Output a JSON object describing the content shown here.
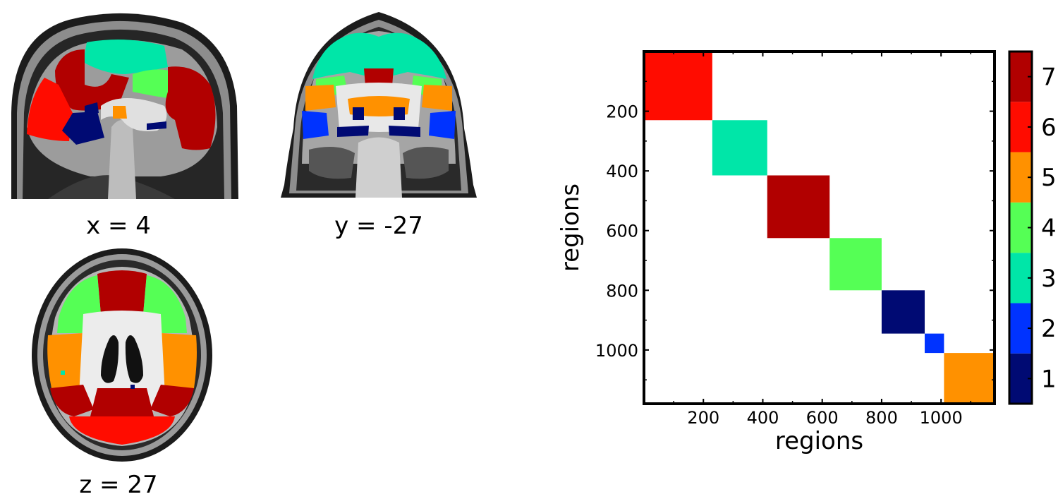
{
  "slices": [
    {
      "label": "x = 4"
    },
    {
      "label": "y = -27"
    },
    {
      "label": "z = 27"
    }
  ],
  "region_colors": {
    "1": "#000a73",
    "2": "#0033ff",
    "3": "#00e6a8",
    "4": "#55ff55",
    "5": "#ff9100",
    "6": "#ff0c00",
    "7": "#b10000"
  },
  "chart_data": {
    "type": "heatmap",
    "xlabel": "regions",
    "ylabel": "regions",
    "xlim": [
      0,
      1180
    ],
    "ylim": [
      0,
      1180
    ],
    "y_inverted": true,
    "xticks": [
      200,
      400,
      600,
      800,
      1000
    ],
    "yticks": [
      200,
      400,
      600,
      800,
      1000
    ],
    "background": "#ffffff",
    "blocks": [
      {
        "start": 0,
        "end": 230,
        "value": 6
      },
      {
        "start": 230,
        "end": 415,
        "value": 3
      },
      {
        "start": 415,
        "end": 625,
        "value": 7
      },
      {
        "start": 625,
        "end": 800,
        "value": 4
      },
      {
        "start": 800,
        "end": 945,
        "value": 1
      },
      {
        "start": 945,
        "end": 1010,
        "value": 2
      },
      {
        "start": 1010,
        "end": 1180,
        "value": 5
      }
    ],
    "colorbar": {
      "min": 0.5,
      "max": 7.5,
      "ticks": [
        1,
        2,
        3,
        4,
        5,
        6,
        7
      ],
      "tick_labels": [
        "1",
        "2",
        "3",
        "4",
        "5",
        "6",
        "7"
      ],
      "colors": [
        "#000a73",
        "#0033ff",
        "#00e6a8",
        "#55ff55",
        "#ff9100",
        "#ff0c00",
        "#b10000"
      ]
    }
  }
}
